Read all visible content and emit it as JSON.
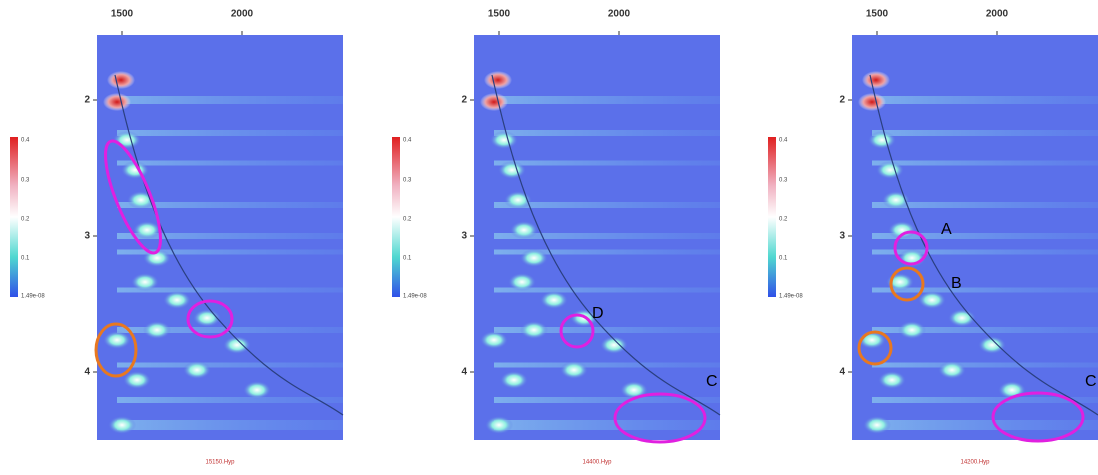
{
  "panels": [
    {
      "xticks": [
        "1500",
        "2000"
      ],
      "yticks": [
        "2",
        "3",
        "4"
      ],
      "colorbar": [
        "0.4",
        "0.3",
        "0.2",
        "0.1",
        "1.49e-08"
      ],
      "caption": "15150.Hyp",
      "annotations": []
    },
    {
      "xticks": [
        "1500",
        "2000"
      ],
      "yticks": [
        "2",
        "3",
        "4"
      ],
      "colorbar": [
        "0.4",
        "0.3",
        "0.2",
        "0.1",
        "1.49e-08"
      ],
      "caption": "14400.Hyp",
      "annotations": [
        "D",
        "C"
      ]
    },
    {
      "xticks": [
        "1500",
        "2000"
      ],
      "yticks": [
        "2",
        "3",
        "4"
      ],
      "colorbar": [
        "0.4",
        "0.3",
        "0.2",
        "0.1",
        "1.49e-08"
      ],
      "caption": "14200.Hyp",
      "annotations": [
        "A",
        "B",
        "C"
      ]
    }
  ]
}
